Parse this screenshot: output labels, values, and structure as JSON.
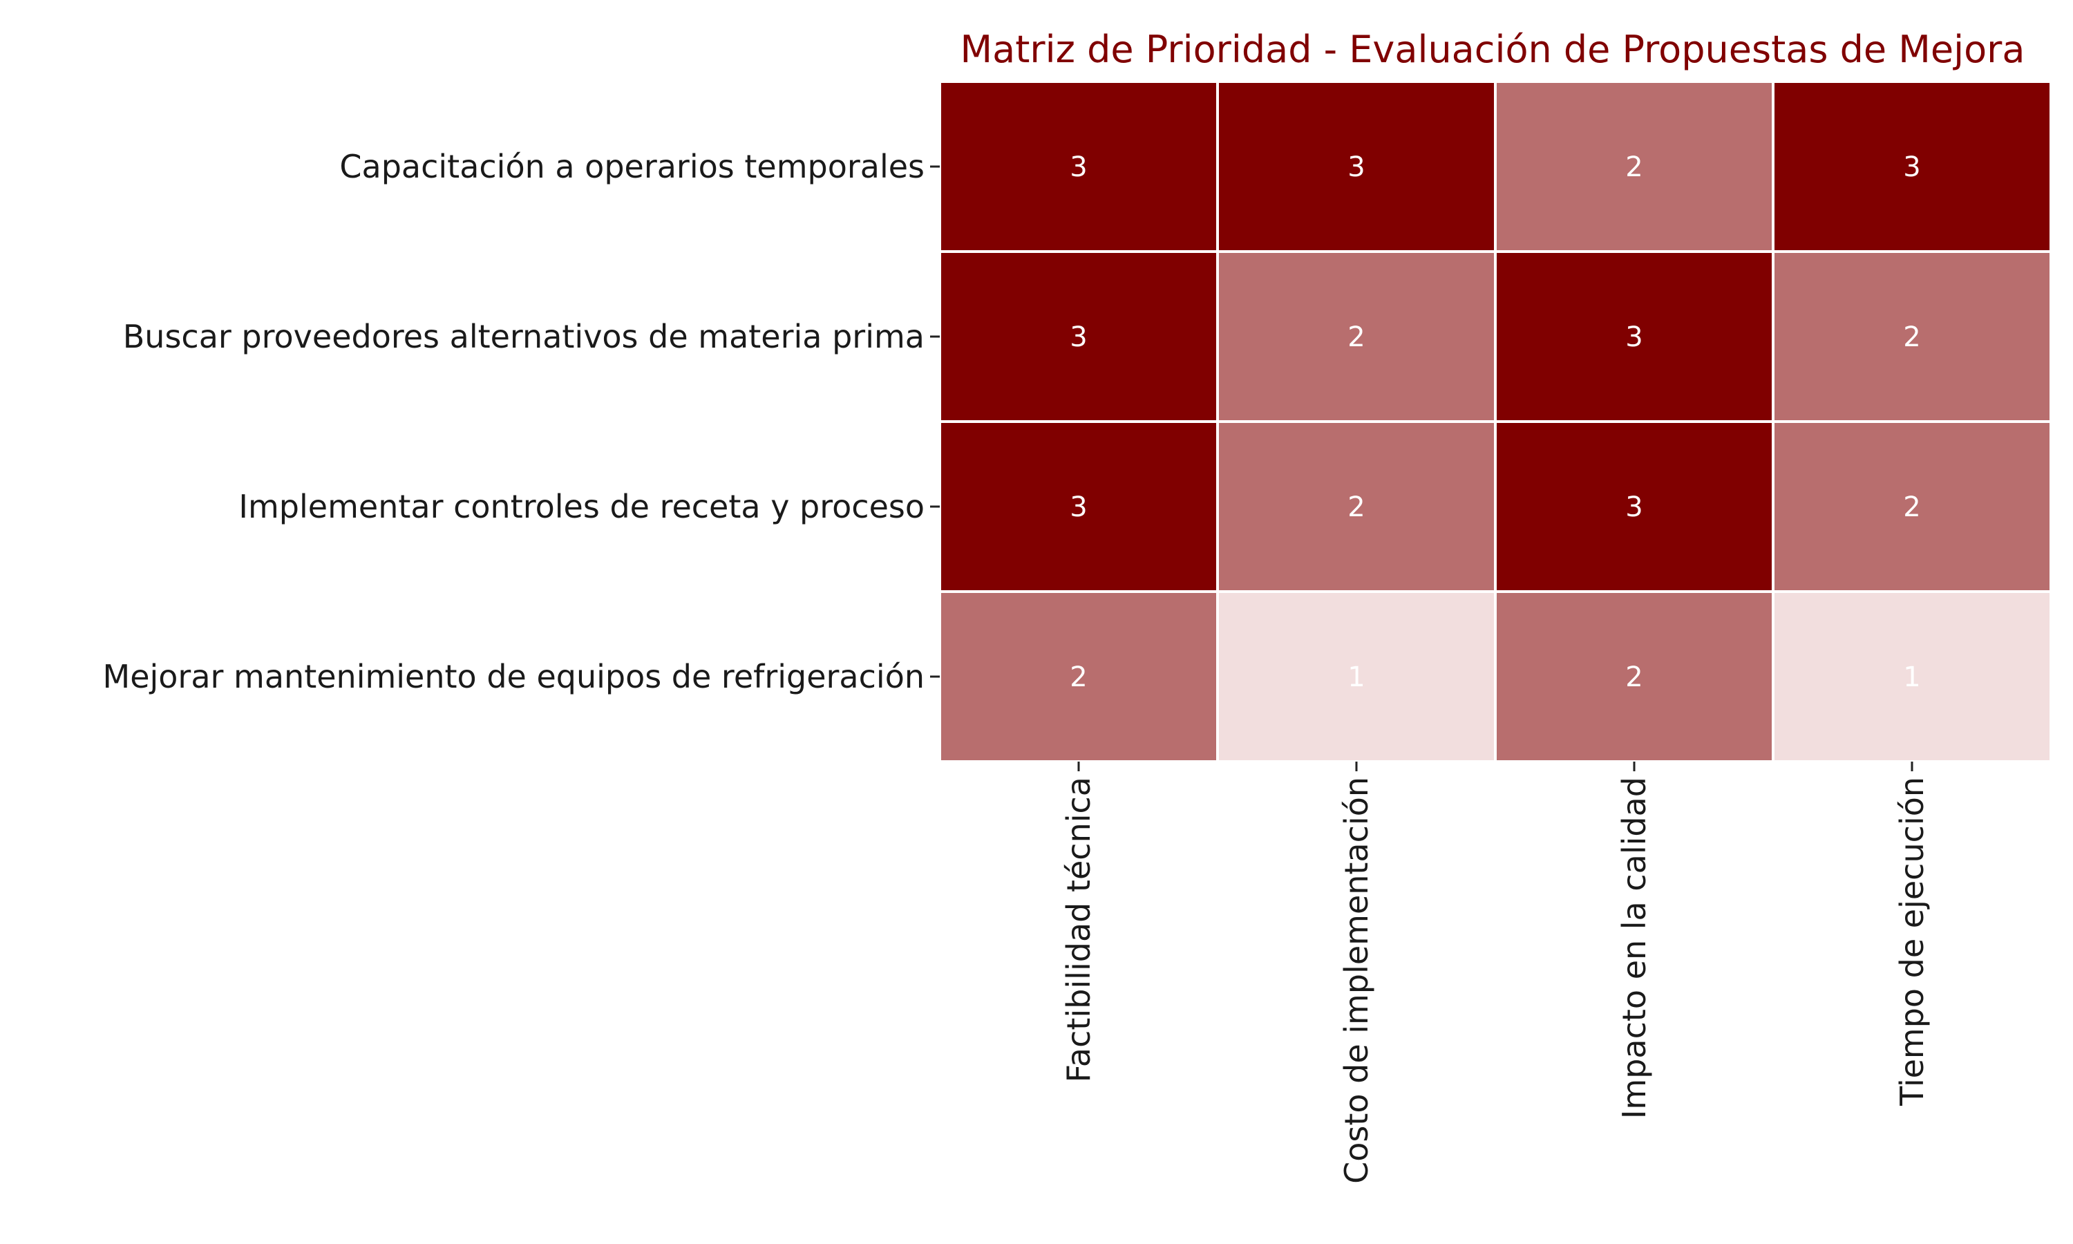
{
  "chart_data": {
    "type": "heatmap",
    "title": "Matriz de Prioridad - Evaluación de Propuestas de Mejora",
    "rows": [
      "Capacitación a operarios temporales",
      "Buscar proveedores alternativos de materia prima",
      "Implementar controles de receta y proceso",
      "Mejorar mantenimiento de equipos de refrigeración"
    ],
    "columns": [
      "Factibilidad técnica",
      "Costo de implementación",
      "Impacto en la calidad",
      "Tiempo de ejecución"
    ],
    "values": [
      [
        3,
        3,
        2,
        3
      ],
      [
        3,
        2,
        3,
        2
      ],
      [
        3,
        2,
        3,
        2
      ],
      [
        2,
        1,
        2,
        1
      ]
    ],
    "value_range": [
      1,
      3
    ],
    "colors": {
      "1": "#f2dede",
      "2": "#b86e6e",
      "3": "#800000"
    },
    "title_color": "#800000",
    "cell_text_color": "#ffffff",
    "grid": false
  }
}
